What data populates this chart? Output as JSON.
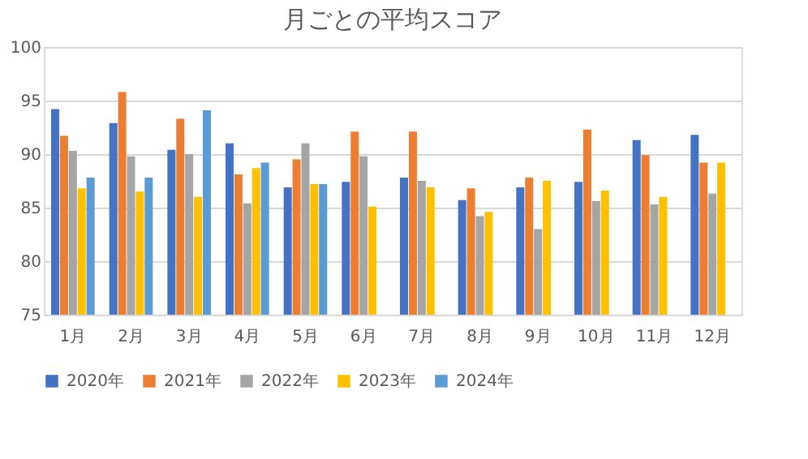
{
  "chart_data": {
    "type": "bar",
    "title": "月ごとの平均スコア",
    "categories": [
      "1月",
      "2月",
      "3月",
      "4月",
      "5月",
      "6月",
      "7月",
      "8月",
      "9月",
      "10月",
      "11月",
      "12月"
    ],
    "series": [
      {
        "name": "2020年",
        "color": "#4472c4",
        "values": [
          94.2,
          92.9,
          90.4,
          91.0,
          86.9,
          87.4,
          87.8,
          85.7,
          86.9,
          87.4,
          91.3,
          91.8
        ]
      },
      {
        "name": "2021年",
        "color": "#ed7d31",
        "values": [
          91.7,
          95.8,
          93.3,
          88.1,
          89.5,
          92.1,
          92.1,
          86.8,
          87.8,
          92.3,
          89.9,
          89.2
        ]
      },
      {
        "name": "2022年",
        "color": "#a5a5a5",
        "values": [
          90.3,
          89.8,
          90.0,
          85.4,
          91.0,
          89.8,
          87.5,
          84.2,
          83.0,
          85.6,
          85.3,
          86.3
        ]
      },
      {
        "name": "2023年",
        "color": "#ffc000",
        "values": [
          86.8,
          86.5,
          86.0,
          88.7,
          87.2,
          85.1,
          86.9,
          84.6,
          87.5,
          86.6,
          86.0,
          89.2
        ]
      },
      {
        "name": "2024年",
        "color": "#5b9bd5",
        "values": [
          87.8,
          87.8,
          94.1,
          89.2,
          87.2,
          null,
          null,
          null,
          null,
          null,
          null,
          null
        ]
      }
    ],
    "ylim": [
      75,
      100
    ],
    "yticks": [
      75,
      80,
      85,
      90,
      95,
      100
    ],
    "grid": "y",
    "legend": "bottom"
  }
}
